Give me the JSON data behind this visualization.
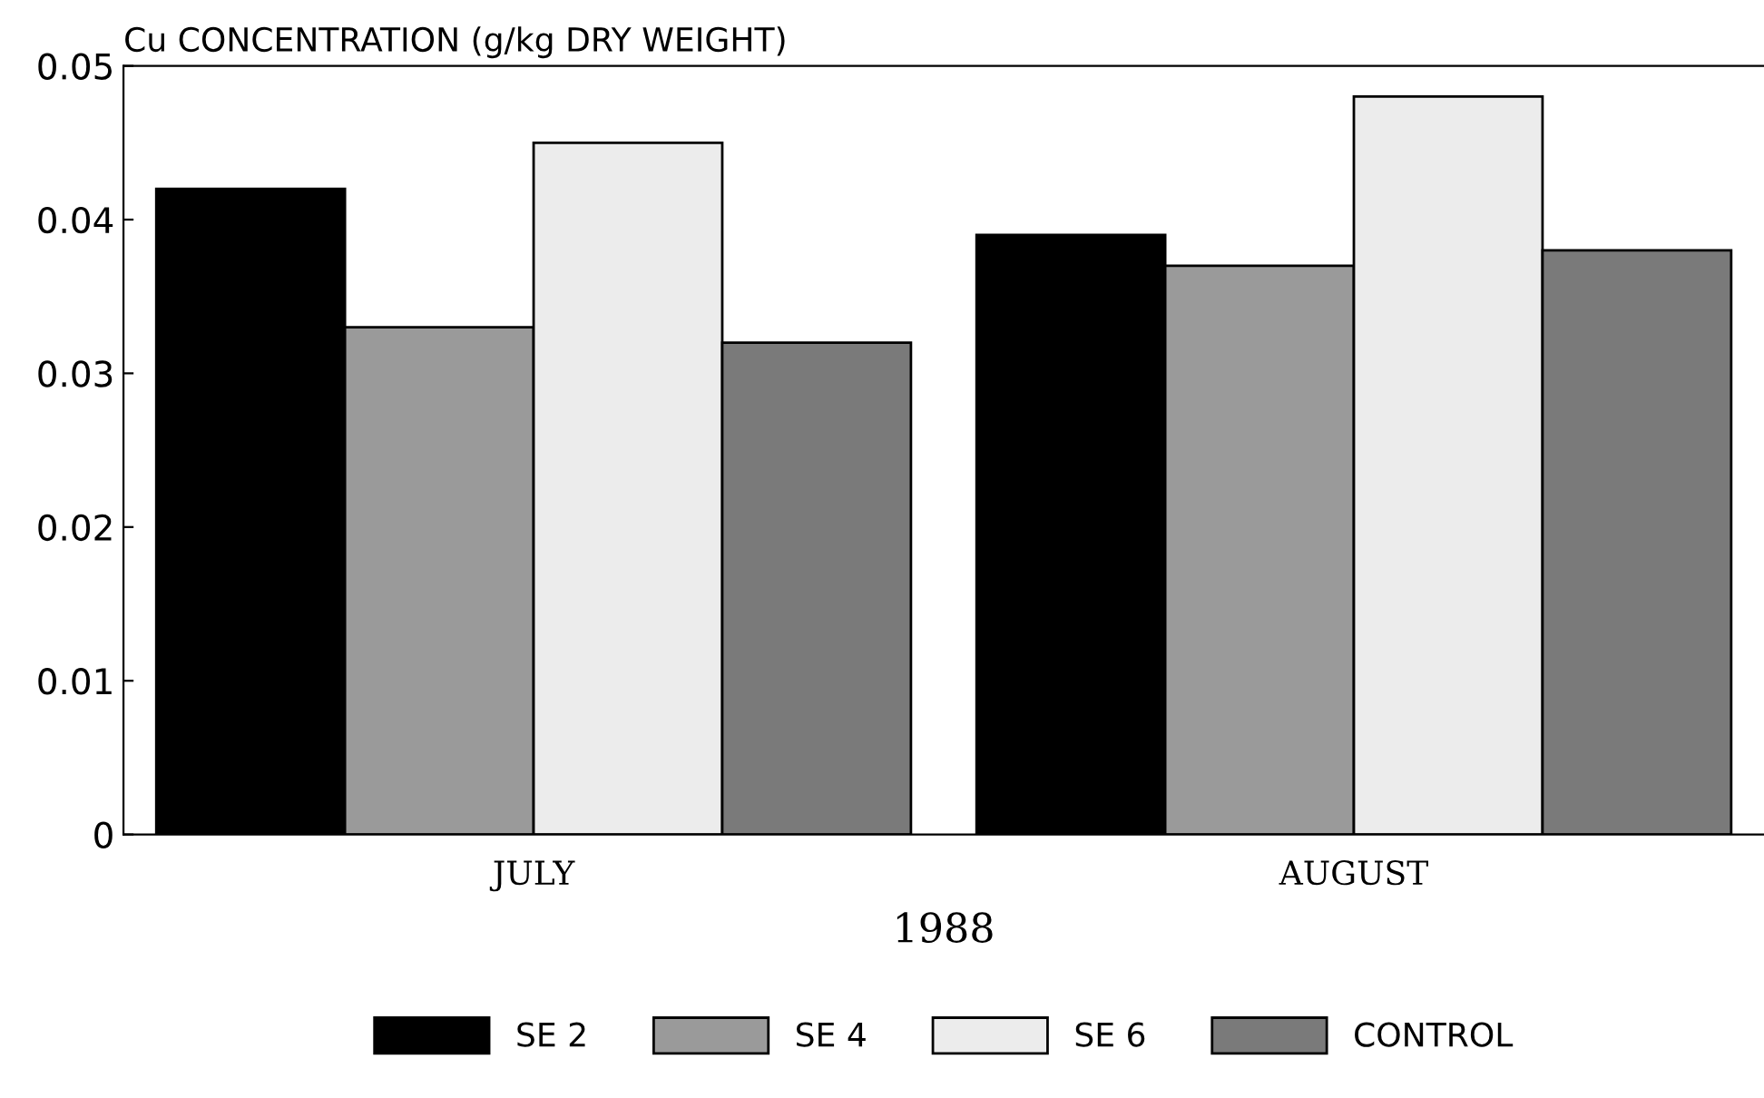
{
  "chart_data": {
    "type": "bar",
    "ylabel": "Cu CONCENTRATION (g/kg DRY WEIGHT)",
    "xlabel": "1988",
    "categories": [
      "JULY",
      "AUGUST"
    ],
    "series": [
      {
        "name": "SE 2",
        "color": "#000000",
        "values": [
          0.042,
          0.039
        ]
      },
      {
        "name": "SE 4",
        "color": "#9a9a9a",
        "values": [
          0.033,
          0.037
        ]
      },
      {
        "name": "SE 6",
        "color": "#ececec",
        "values": [
          0.045,
          0.048
        ]
      },
      {
        "name": "CONTROL",
        "color": "#7a7a7a",
        "values": [
          0.032,
          0.038
        ]
      }
    ],
    "ylim": [
      0,
      0.05
    ],
    "yticks": [
      {
        "value": 0,
        "label": "0"
      },
      0.01,
      0.02,
      0.03,
      0.04,
      0.05
    ],
    "grid": false,
    "legend": "bottom"
  }
}
